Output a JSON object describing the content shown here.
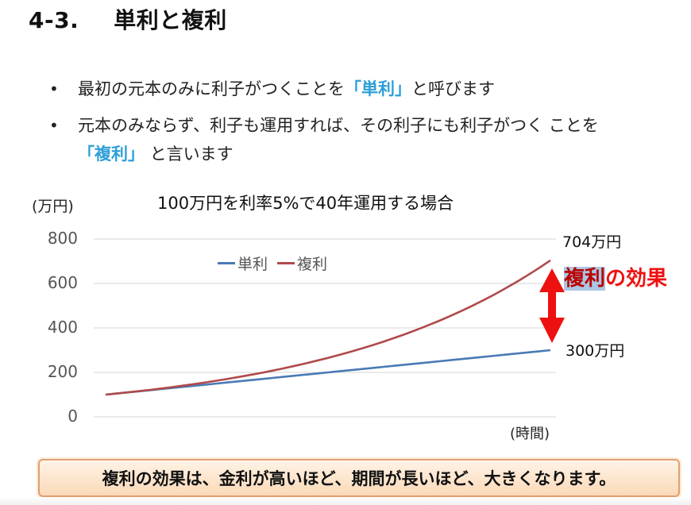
{
  "header": {
    "section_number": "4-3.",
    "title": "単利と複利"
  },
  "bullets": [
    {
      "parts": [
        {
          "text": "最初の元本のみに利子がつくことを",
          "highlight": false
        },
        {
          "text": "「単利」",
          "highlight": true
        },
        {
          "text": "と呼びます",
          "highlight": false
        }
      ]
    },
    {
      "parts": [
        {
          "text": "元本のみならず、利子も運用すれば、その利子にも利子がつく ことを",
          "highlight": false
        },
        {
          "text": "「複利」",
          "highlight": true
        },
        {
          "text": " と言います",
          "highlight": false
        }
      ]
    }
  ],
  "colors": {
    "highlight": "#2e9fd8",
    "simple_line": "#4a7ab5",
    "compound_line": "#b04a4a",
    "arrow": "#ee1111",
    "effect_text": "#e11111",
    "gridline": "#dddddd",
    "summary_border": "#e0a070"
  },
  "chart_data": {
    "type": "line",
    "title": "100万円を利率5%で40年運用する場合",
    "xlabel": "(時間)",
    "ylabel": "(万円)",
    "ylim": [
      0,
      800
    ],
    "yticks": [
      0,
      200,
      400,
      600,
      800
    ],
    "grid": true,
    "legend_position": "top-left inside",
    "x": [
      0,
      5,
      10,
      15,
      20,
      25,
      30,
      35,
      40
    ],
    "series": [
      {
        "name": "単利",
        "color": "#4a7ab5",
        "values": [
          100,
          125,
          150,
          175,
          200,
          225,
          250,
          275,
          300
        ]
      },
      {
        "name": "複利",
        "color": "#b04a4a",
        "values": [
          100,
          128,
          163,
          208,
          265,
          339,
          432,
          552,
          704
        ]
      }
    ],
    "annotations": [
      {
        "text": "704万円",
        "target": "複利 end value"
      },
      {
        "text": "300万円",
        "target": "単利 end value"
      },
      {
        "text": "複利の効果",
        "target": "gap between series at end",
        "arrow": "double-headed vertical"
      }
    ]
  },
  "chart": {
    "unit_label": "(万円)",
    "title": "100万円を利率5%で40年運用する場合",
    "x_axis_label": "(時間)",
    "y_ticks": [
      "800",
      "600",
      "400",
      "200",
      "0"
    ],
    "legend": [
      {
        "label": "単利",
        "color": "#4a7ab5"
      },
      {
        "label": "複利",
        "color": "#b04a4a"
      }
    ],
    "end_label_compound": "704万円",
    "end_label_simple": "300万円",
    "effect_label_highlighted": "複利",
    "effect_label_rest": "の効果"
  },
  "summary": {
    "text": "複利の効果は、金利が高いほど、期間が長いほど、大きくなります。"
  }
}
